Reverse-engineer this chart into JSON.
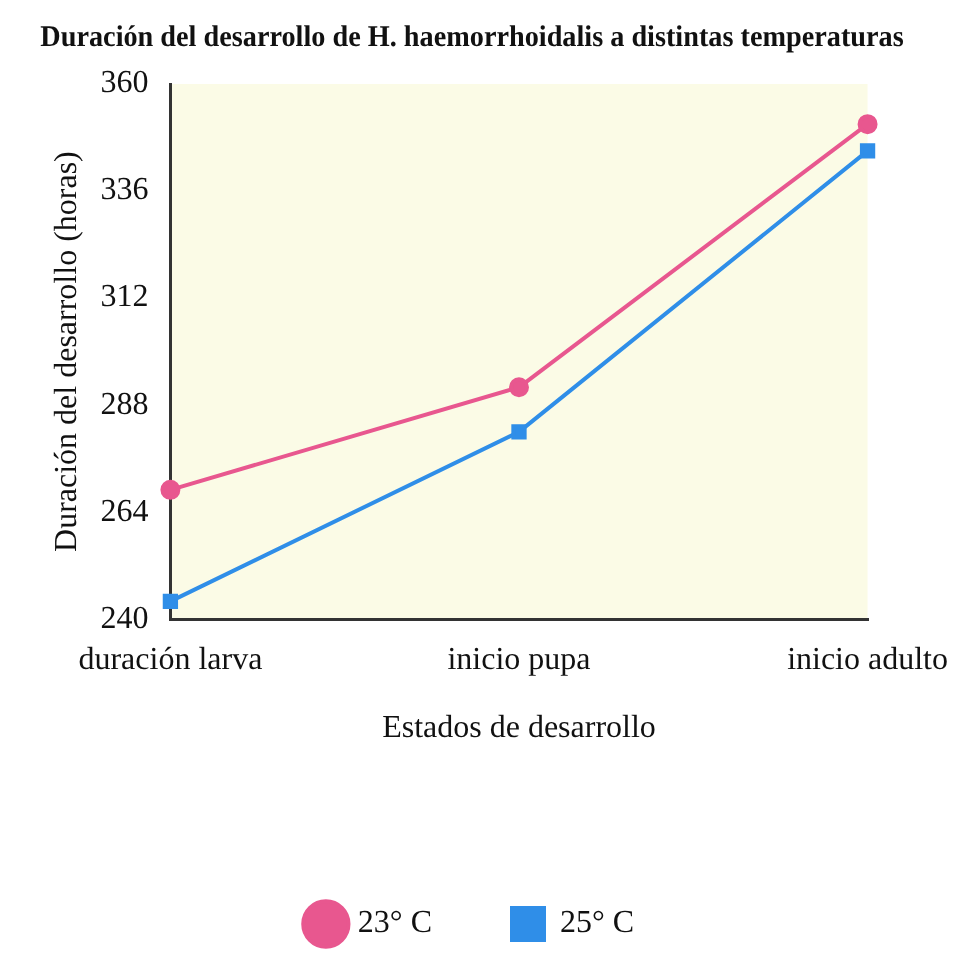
{
  "chart_data": {
    "type": "line",
    "title": "Duración del desarrollo de H. haemorrhoidalis a distintas temperaturas",
    "xlabel": "Estados de desarrollo",
    "ylabel": "Duración del desarrollo (horas)",
    "categories": [
      "duración larva",
      "inicio pupa",
      "inicio adulto"
    ],
    "ylim": [
      240,
      360
    ],
    "yticks": [
      240,
      264,
      288,
      312,
      336,
      360
    ],
    "grid": false,
    "legend": "bottom",
    "series": [
      {
        "name": "23° C",
        "color": "#e8578f",
        "marker": "circle",
        "values": [
          269,
          292,
          351
        ]
      },
      {
        "name": "25° C",
        "color": "#2f8ee8",
        "marker": "square",
        "values": [
          244,
          282,
          345
        ]
      }
    ]
  }
}
